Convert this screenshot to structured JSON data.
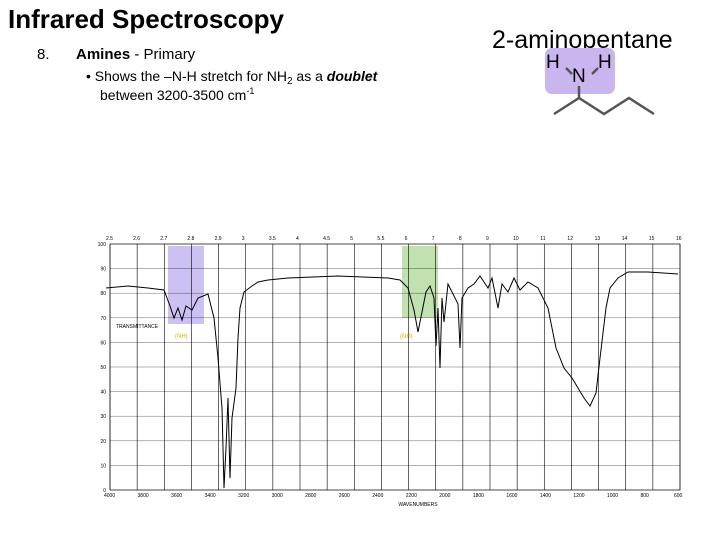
{
  "slide": {
    "title": "Infrared Spectroscopy",
    "item_number": "8.",
    "item_heading_bold": "Amines",
    "item_heading_rest": " - Primary",
    "bullet": {
      "marker": "•",
      "line1_before_sub": "Shows the –N-H stretch for NH",
      "line1_sub": "2",
      "line1_middle": " as a ",
      "line1_emphasis": "doublet",
      "line2_text": "between 3200-3500 cm",
      "line2_sup": "-1"
    }
  },
  "compound": {
    "name": "2-aminopentane",
    "atoms": [
      "H",
      "N",
      "H"
    ],
    "highlight_color": "#c9b6ee",
    "bond_color": "#555555"
  },
  "spectrum": {
    "micron_ticks": [
      "2.5",
      "2.6",
      "2.7",
      "2.8",
      "2.9",
      "3",
      "3.5",
      "4",
      "4.5",
      "5",
      "5.5",
      "6",
      "7",
      "8",
      "9",
      "10",
      "11",
      "12",
      "13",
      "14",
      "15",
      "16"
    ],
    "wavenumber_ticks": [
      "4000",
      "3800",
      "3600",
      "3400",
      "3200",
      "3000",
      "2800",
      "2600",
      "2400",
      "2200",
      "2000",
      "1800",
      "1600",
      "1400",
      "1200",
      "1000",
      "800",
      "600"
    ],
    "transmittance_ticks": [
      "100",
      "90",
      "80",
      "70",
      "60",
      "50",
      "40",
      "30",
      "20",
      "10",
      "0"
    ],
    "x_label": "WAVENUMBERS",
    "y_label": "TRANSMITTANCE",
    "band_labels": [
      "(NH)",
      "(NH)"
    ],
    "nh_stretch_band_color": "#a48de8",
    "nh_bend_band_color": "#8ec86f",
    "band_label_color": "#c8b400",
    "line_color": "#000000"
  }
}
